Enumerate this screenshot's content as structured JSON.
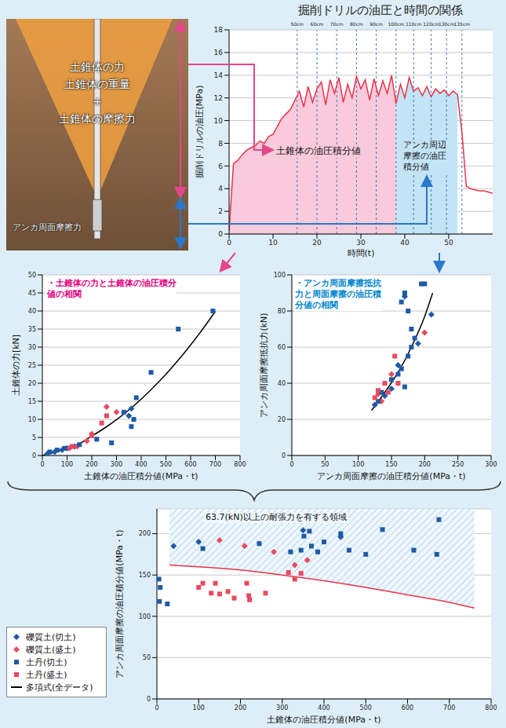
{
  "diagram": {
    "cone_labels": [
      "土錐体の力",
      "土錐体の重量",
      "+",
      "土錐体の摩擦力"
    ],
    "anchor_label": "アンカ周面摩擦力"
  },
  "chart_data": [
    {
      "type": "line",
      "title": "掘削ドリルの油圧と時間の関係",
      "x_label": "時間(t)",
      "y_label": "掘削ドリルの油圧(MPa)",
      "xlim": [
        0,
        60
      ],
      "xticks": [
        0,
        10,
        20,
        30,
        40,
        50
      ],
      "ylim": [
        0,
        18
      ],
      "yticks": [
        0,
        2,
        4,
        6,
        8,
        10,
        12,
        14,
        16,
        18
      ],
      "grid": true,
      "color": "#e8334a",
      "x": [
        0,
        1,
        2,
        3,
        4,
        5,
        6,
        7,
        8,
        9,
        10,
        11,
        12,
        13,
        14,
        15,
        16,
        17,
        18,
        19,
        20,
        21,
        22,
        23,
        24,
        25,
        26,
        27,
        28,
        29,
        30,
        31,
        32,
        33,
        34,
        35,
        36,
        37,
        38,
        39,
        40,
        41,
        42,
        43,
        44,
        45,
        46,
        47,
        48,
        49,
        50,
        51,
        52,
        53,
        54,
        55,
        56,
        57,
        58,
        59,
        60
      ],
      "values": [
        0.3,
        6.2,
        6.5,
        7.0,
        7.4,
        7.6,
        7.8,
        8.2,
        8.0,
        8.6,
        8.8,
        9.5,
        10.2,
        10.6,
        11.0,
        11.8,
        12.6,
        11.2,
        13.0,
        11.6,
        12.8,
        13.4,
        11.4,
        13.6,
        12.4,
        13.8,
        11.6,
        13.2,
        12.0,
        13.9,
        12.8,
        13.6,
        11.8,
        13.7,
        12.2,
        13.5,
        12.4,
        14.0,
        11.5,
        13.2,
        12.0,
        13.8,
        12.6,
        12.9,
        12.2,
        13.0,
        12.1,
        12.8,
        12.4,
        12.7,
        12.2,
        12.6,
        12.3,
        9.0,
        4.2,
        4.0,
        3.9,
        3.8,
        3.8,
        3.7,
        3.6
      ],
      "areas": [
        {
          "label": "土錐体の油圧積分値",
          "range": [
            0,
            38
          ],
          "color": "#f9cadb"
        },
        {
          "label": "アンカ周辺摩擦の油圧積分値",
          "range": [
            38,
            52
          ],
          "color": "#c3e4f5"
        }
      ],
      "depth_marks": [
        {
          "x": 15.5,
          "label": "50cm"
        },
        {
          "x": 20,
          "label": "60cm"
        },
        {
          "x": 24.5,
          "label": "70cm"
        },
        {
          "x": 29,
          "label": "80cm"
        },
        {
          "x": 33.5,
          "label": "90cm"
        },
        {
          "x": 38,
          "label": "100cm"
        },
        {
          "x": 42,
          "label": "110cm"
        },
        {
          "x": 46,
          "label": "120cm"
        },
        {
          "x": 49.5,
          "label": "130cm"
        },
        {
          "x": 53,
          "label": "135cm"
        }
      ]
    },
    {
      "type": "scatter",
      "title": "・土錐体の力と土錐体の油圧積分値の相関",
      "x_label": "土錐体の油圧積分値(MPa・t)",
      "y_label": "土錐体の力[kN]",
      "xlim": [
        0,
        800
      ],
      "xticks": [
        0,
        100,
        200,
        300,
        400,
        500,
        600,
        700,
        800
      ],
      "ylim": [
        0,
        50
      ],
      "yticks": [
        0,
        5,
        10,
        15,
        20,
        25,
        30,
        35,
        40,
        45,
        50
      ],
      "grid": true,
      "series": [
        {
          "name": "礫質土(切土)",
          "color": "#1f5aa6",
          "marker": "diamond",
          "x": [
            20,
            50,
            80,
            100,
            130,
            350,
            360
          ],
          "values": [
            0.5,
            1,
            1.5,
            2,
            2.5,
            11,
            13
          ]
        },
        {
          "name": "礫質土(盛土)",
          "color": "#e84a5f",
          "marker": "diamond",
          "x": [
            110,
            140,
            180,
            200,
            260,
            300
          ],
          "values": [
            2,
            2.5,
            4,
            6,
            13.5,
            12
          ]
        },
        {
          "name": "土丹(切土)",
          "color": "#1f5aa6",
          "marker": "square",
          "x": [
            30,
            60,
            90,
            150,
            220,
            280,
            330,
            360,
            370,
            380,
            440,
            550,
            690
          ],
          "values": [
            1,
            1.5,
            2,
            3,
            4.5,
            3.5,
            12,
            8,
            10,
            16,
            23,
            35,
            40
          ]
        },
        {
          "name": "土丹(盛土)",
          "color": "#e84a5f",
          "marker": "square",
          "x": [
            120,
            200,
            240,
            260
          ],
          "values": [
            2.5,
            5.5,
            9,
            11
          ]
        },
        {
          "name": "多項式(全データ)",
          "type": "line",
          "color": "#000000",
          "x": [
            0,
            50,
            100,
            150,
            200,
            250,
            300,
            350,
            400,
            450,
            500,
            550,
            600,
            650,
            700
          ],
          "values": [
            0,
            0.9,
            2.0,
            3.3,
            5.4,
            7.5,
            9.9,
            12.6,
            15.6,
            18.9,
            22.5,
            26.4,
            30.6,
            35.1,
            39.9
          ]
        }
      ]
    },
    {
      "type": "scatter",
      "title": "・アンカ周面摩擦抵抗力と周面摩擦の油圧積分値の相関",
      "x_label": "アンカ周面摩擦の油圧積分値(MPa・t)",
      "y_label": "アンカ周面摩擦抵抗力(kN)",
      "xlim": [
        0,
        300
      ],
      "xticks": [
        0,
        50,
        100,
        150,
        200,
        250,
        300
      ],
      "ylim": [
        0,
        100
      ],
      "yticks": [
        0,
        20,
        40,
        60,
        80,
        100
      ],
      "grid": true,
      "series": [
        {
          "name": "礫質土(切土)",
          "color": "#1f5aa6",
          "marker": "diamond",
          "x": [
            125,
            140,
            150,
            160,
            170,
            190,
            210
          ],
          "values": [
            28,
            33,
            37,
            50,
            88,
            62,
            78
          ]
        },
        {
          "name": "礫質土(盛土)",
          "color": "#e84a5f",
          "marker": "diamond",
          "x": [
            130,
            135,
            150,
            200
          ],
          "values": [
            34,
            30,
            45,
            68
          ]
        },
        {
          "name": "土丹(切土)",
          "color": "#1f5aa6",
          "marker": "square",
          "x": [
            130,
            135,
            150,
            160,
            165,
            170,
            175,
            180,
            165,
            170,
            175,
            195,
            200,
            180,
            185
          ],
          "values": [
            30,
            35,
            42,
            45,
            48,
            38,
            55,
            60,
            85,
            90,
            80,
            95,
            95,
            70,
            65
          ]
        },
        {
          "name": "土丹(盛土)",
          "color": "#e84a5f",
          "marker": "square",
          "x": [
            125,
            130,
            140,
            145,
            155,
            160
          ],
          "values": [
            32,
            36,
            40,
            35,
            55,
            40
          ]
        },
        {
          "name": "多項式(全データ)",
          "type": "line",
          "color": "#000000",
          "x": [
            120,
            140,
            160,
            180,
            200,
            212
          ],
          "values": [
            25,
            35,
            46,
            60,
            77,
            90
          ]
        }
      ]
    },
    {
      "type": "scatter",
      "x_label": "土錐体の油圧積分値(MPa・t)",
      "y_label": "アンカ周面摩擦の油圧積分値(MPa・t)",
      "annotation": "63.7(kN)以上の耐張力を有する領域",
      "xlim": [
        0,
        800
      ],
      "xticks": [
        0,
        100,
        200,
        300,
        400,
        500,
        600,
        700,
        800
      ],
      "ylim": [
        0,
        230
      ],
      "yticks": [
        0,
        50,
        100,
        150,
        200
      ],
      "grid": true,
      "legend": "left",
      "series": [
        {
          "name": "礫質土(切土)",
          "color": "#1f5aa6",
          "marker": "diamond",
          "x": [
            40,
            100,
            350,
            440
          ],
          "values": [
            185,
            190,
            204,
            196
          ]
        },
        {
          "name": "礫質土(盛土)",
          "color": "#e84a5f",
          "marker": "diamond",
          "x": [
            150,
            210,
            280,
            330,
            360
          ],
          "values": [
            192,
            185,
            178,
            162,
            168
          ]
        },
        {
          "name": "土丹(切土)",
          "color": "#1f5aa6",
          "marker": "square",
          "x": [
            5,
            8,
            6,
            25,
            110,
            245,
            320,
            345,
            352,
            365,
            370,
            385,
            400,
            440,
            460,
            500,
            540,
            615,
            670,
            675
          ],
          "values": [
            145,
            135,
            118,
            115,
            182,
            188,
            178,
            180,
            197,
            203,
            185,
            178,
            190,
            200,
            180,
            175,
            205,
            180,
            175,
            217
          ]
        },
        {
          "name": "土丹(盛土)",
          "color": "#e84a5f",
          "marker": "square",
          "x": [
            100,
            110,
            130,
            140,
            150,
            170,
            185,
            215,
            220,
            222,
            260,
            315,
            330,
            345
          ],
          "values": [
            135,
            140,
            128,
            140,
            127,
            130,
            122,
            140,
            125,
            120,
            128,
            153,
            145,
            152
          ]
        },
        {
          "type": "area",
          "color": "#e8334a",
          "x": [
            30,
            100,
            200,
            300,
            400,
            500,
            600,
            700,
            760
          ],
          "values": [
            162,
            160,
            156,
            150,
            143,
            135,
            126,
            117,
            110
          ]
        }
      ]
    }
  ]
}
